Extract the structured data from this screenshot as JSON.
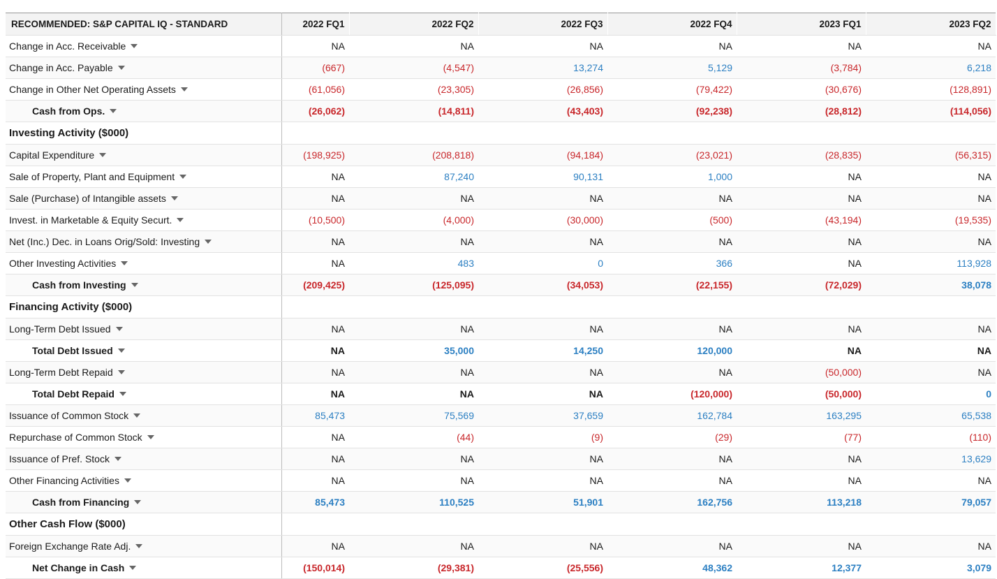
{
  "header": {
    "title": "RECOMMENDED: S&P CAPITAL IQ - STANDARD",
    "columns": [
      "2022 FQ1",
      "2022 FQ2",
      "2022 FQ3",
      "2022 FQ4",
      "2023 FQ1",
      "2023 FQ2"
    ]
  },
  "rows": [
    {
      "label": "Change in Acc. Receivable",
      "values": [
        "NA",
        "NA",
        "NA",
        "NA",
        "NA",
        "NA"
      ]
    },
    {
      "label": "Change in Acc. Payable",
      "values": [
        "(667)",
        "(4,547)",
        "13,274",
        "5,129",
        "(3,784)",
        "6,218"
      ]
    },
    {
      "label": "Change in Other Net Operating Assets",
      "values": [
        "(61,056)",
        "(23,305)",
        "(26,856)",
        "(79,422)",
        "(30,676)",
        "(128,891)"
      ]
    },
    {
      "label": "Cash from Ops.",
      "style": "total",
      "values": [
        "(26,062)",
        "(14,811)",
        "(43,403)",
        "(92,238)",
        "(28,812)",
        "(114,056)"
      ]
    },
    {
      "label": "Investing Activity ($000)",
      "style": "section"
    },
    {
      "label": "Capital Expenditure",
      "values": [
        "(198,925)",
        "(208,818)",
        "(94,184)",
        "(23,021)",
        "(28,835)",
        "(56,315)"
      ]
    },
    {
      "label": "Sale of Property, Plant and Equipment",
      "values": [
        "NA",
        "87,240",
        "90,131",
        "1,000",
        "NA",
        "NA"
      ]
    },
    {
      "label": "Sale (Purchase) of Intangible assets",
      "values": [
        "NA",
        "NA",
        "NA",
        "NA",
        "NA",
        "NA"
      ]
    },
    {
      "label": "Invest. in Marketable & Equity Securt.",
      "values": [
        "(10,500)",
        "(4,000)",
        "(30,000)",
        "(500)",
        "(43,194)",
        "(19,535)"
      ]
    },
    {
      "label": "Net (Inc.) Dec. in Loans Orig/Sold: Investing",
      "values": [
        "NA",
        "NA",
        "NA",
        "NA",
        "NA",
        "NA"
      ]
    },
    {
      "label": "Other Investing Activities",
      "values": [
        "NA",
        "483",
        "0",
        "366",
        "NA",
        "113,928"
      ]
    },
    {
      "label": "Cash from Investing",
      "style": "total",
      "values": [
        "(209,425)",
        "(125,095)",
        "(34,053)",
        "(22,155)",
        "(72,029)",
        "38,078"
      ]
    },
    {
      "label": "Financing Activity ($000)",
      "style": "section"
    },
    {
      "label": "Long-Term Debt Issued",
      "values": [
        "NA",
        "NA",
        "NA",
        "NA",
        "NA",
        "NA"
      ]
    },
    {
      "label": "Total Debt Issued",
      "style": "total",
      "values": [
        "NA",
        "35,000",
        "14,250",
        "120,000",
        "NA",
        "NA"
      ]
    },
    {
      "label": "Long-Term Debt Repaid",
      "values": [
        "NA",
        "NA",
        "NA",
        "NA",
        "(50,000)",
        "NA"
      ]
    },
    {
      "label": "Total Debt Repaid",
      "style": "total",
      "values": [
        "NA",
        "NA",
        "NA",
        "(120,000)",
        "(50,000)",
        "0"
      ]
    },
    {
      "label": "Issuance of Common Stock",
      "values": [
        "85,473",
        "75,569",
        "37,659",
        "162,784",
        "163,295",
        "65,538"
      ]
    },
    {
      "label": "Repurchase of Common Stock",
      "values": [
        "NA",
        "(44)",
        "(9)",
        "(29)",
        "(77)",
        "(110)"
      ]
    },
    {
      "label": "Issuance of Pref. Stock",
      "values": [
        "NA",
        "NA",
        "NA",
        "NA",
        "NA",
        "13,629"
      ]
    },
    {
      "label": "Other Financing Activities",
      "values": [
        "NA",
        "NA",
        "NA",
        "NA",
        "NA",
        "NA"
      ]
    },
    {
      "label": "Cash from Financing",
      "style": "total",
      "values": [
        "85,473",
        "110,525",
        "51,901",
        "162,756",
        "113,218",
        "79,057"
      ]
    },
    {
      "label": "Other Cash Flow ($000)",
      "style": "section"
    },
    {
      "label": "Foreign Exchange Rate Adj.",
      "values": [
        "NA",
        "NA",
        "NA",
        "NA",
        "NA",
        "NA"
      ]
    },
    {
      "label": "Net Change in Cash",
      "style": "total",
      "values": [
        "(150,014)",
        "(29,381)",
        "(25,556)",
        "48,362",
        "12,377",
        "3,079"
      ]
    }
  ]
}
